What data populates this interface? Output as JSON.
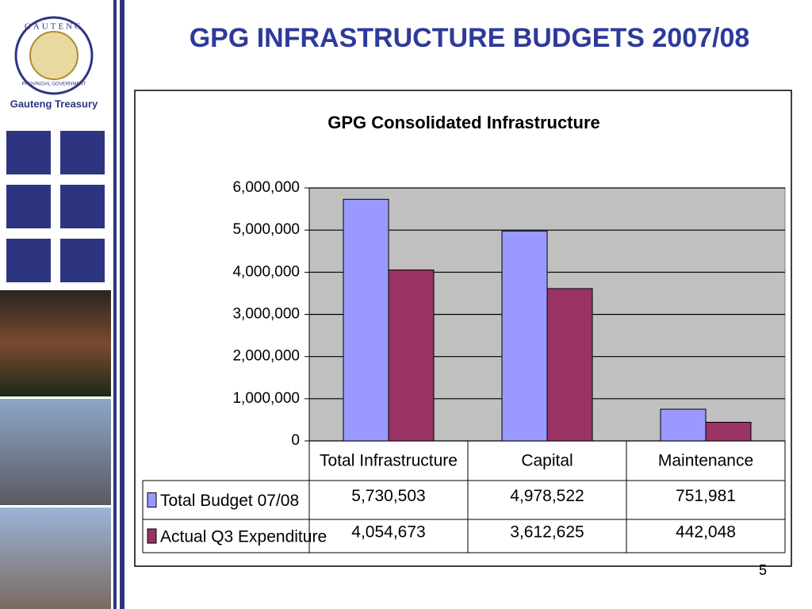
{
  "slide": {
    "title": "GPG INFRASTRUCTURE BUDGETS 2007/08",
    "logo_top": "GAUTENG",
    "logo_bottom": "PROVINCIAL GOVERNMENT",
    "department": "Gauteng Treasury",
    "page_number": "5"
  },
  "chart_data": {
    "type": "bar",
    "title": "GPG Consolidated Infrastructure",
    "categories": [
      "Total Infrastructure",
      "Capital",
      "Maintenance"
    ],
    "series": [
      {
        "name": "Total Budget 07/08",
        "color": "#9999ff",
        "values": [
          5730503,
          4978522,
          751981
        ],
        "value_labels": [
          "5,730,503",
          "4,978,522",
          "751,981"
        ]
      },
      {
        "name": "Actual Q3 Expenditure",
        "color": "#993366",
        "values": [
          4054673,
          3612625,
          442048
        ],
        "value_labels": [
          "4,054,673",
          "3,612,625",
          "442,048"
        ]
      }
    ],
    "ylim": [
      0,
      6000000
    ],
    "yticks": [
      0,
      {
        "value": 1000000,
        "label": "1,000,000"
      },
      {
        "value": 2000000,
        "label": "2,000,000"
      },
      {
        "value": 3000000,
        "label": "3,000,000"
      },
      {
        "value": 4000000,
        "label": "4,000,000"
      },
      {
        "value": 5000000,
        "label": "5,000,000"
      },
      {
        "value": 6000000,
        "label": "6,000,000"
      }
    ],
    "grid": true,
    "plot_background": "#c0c0c0"
  }
}
